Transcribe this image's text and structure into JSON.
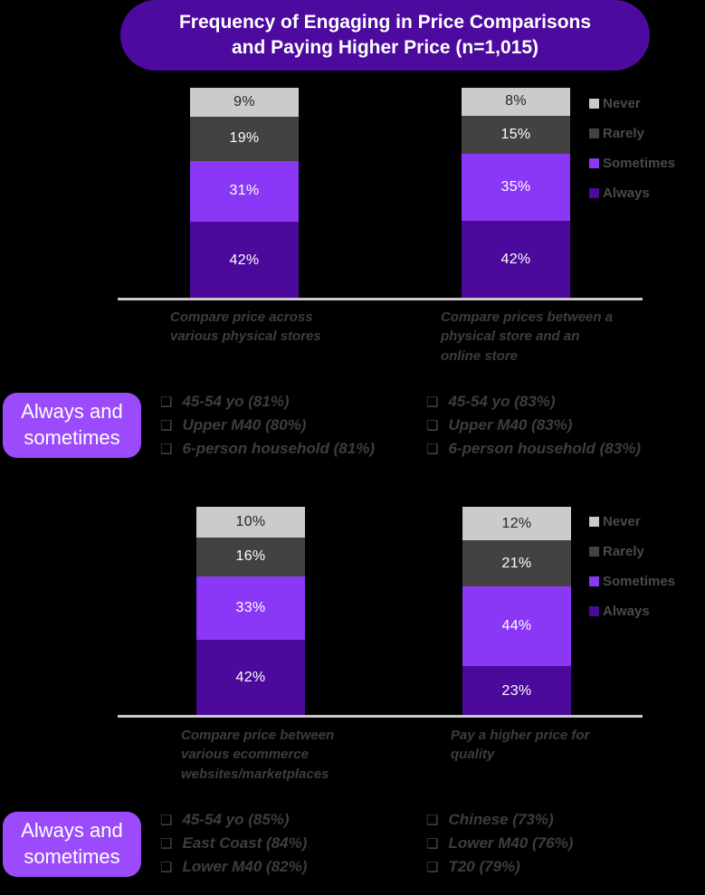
{
  "page": {
    "background": "#000000",
    "title_lines": [
      "Frequency of Engaging in Price Comparisons",
      "and Paying Higher Price (n=1,015)"
    ],
    "sample_size": "n=1,015"
  },
  "colors": {
    "title_bg": "#4c0a9e",
    "callout_bg": "#9b4bfb",
    "always": "#4b0a9b",
    "sometimes": "#8a38f6",
    "rarely": "#424242",
    "never": "#cbcbcb",
    "axis_line": "#c9c9c9",
    "label_text": "#3d3d3d"
  },
  "chart_data": [
    {
      "type": "bar",
      "stacked": true,
      "orientation": "vertical",
      "unit": "%",
      "ylim": [
        0,
        100
      ],
      "legend_position": "right",
      "legend_order_top_to_bottom": [
        "Never",
        "Rarely",
        "Sometimes",
        "Always"
      ],
      "title": "Frequency of Engaging in Price Comparisons and Paying Higher Price (n=1,015)",
      "categories": [
        "Compare price across various physical stores",
        "Compare prices between a physical store and an online store"
      ],
      "category_labels": [
        "Compare price across\nvarious physical stores",
        "Compare prices between a\nphysical store and an\nonline store"
      ],
      "series": [
        {
          "name": "Always",
          "values": [
            42,
            42
          ],
          "color": "#4b0a9b",
          "text_color": "#ffffff"
        },
        {
          "name": "Sometimes",
          "values": [
            31,
            35
          ],
          "color": "#8a38f6",
          "text_color": "#ffffff"
        },
        {
          "name": "Rarely",
          "values": [
            19,
            15
          ],
          "color": "#424242",
          "text_color": "#ffffff"
        },
        {
          "name": "Never",
          "values": [
            9,
            8
          ],
          "color": "#cbcbcb",
          "text_color": "#262626"
        }
      ]
    },
    {
      "type": "bar",
      "stacked": true,
      "orientation": "vertical",
      "unit": "%",
      "ylim": [
        0,
        100
      ],
      "legend_position": "right",
      "legend_order_top_to_bottom": [
        "Never",
        "Rarely",
        "Sometimes",
        "Always"
      ],
      "categories": [
        "Compare price between various ecommerce websites/marketplaces",
        "Pay a higher price for quality"
      ],
      "category_labels": [
        "Compare price between\nvarious ecommerce\nwebsites/marketplaces",
        "Pay a higher price for\nquality"
      ],
      "series": [
        {
          "name": "Always",
          "values": [
            42,
            23
          ],
          "color": "#4b0a9b",
          "text_color": "#ffffff"
        },
        {
          "name": "Sometimes",
          "values": [
            33,
            44
          ],
          "color": "#8a38f6",
          "text_color": "#ffffff"
        },
        {
          "name": "Rarely",
          "values": [
            16,
            21
          ],
          "color": "#424242",
          "text_color": "#ffffff"
        },
        {
          "name": "Never",
          "values": [
            10,
            12
          ],
          "color": "#cbcbcb",
          "text_color": "#262626"
        }
      ]
    }
  ],
  "callouts": [
    {
      "label": "Always and\nsometimes",
      "bullet": "❑",
      "columns": [
        [
          "45-54 yo (81%)",
          "Upper M40 (80%)",
          "6-person household (81%)"
        ],
        [
          "45-54 yo (83%)",
          "Upper M40 (83%)",
          "6-person household (83%)"
        ]
      ]
    },
    {
      "label": "Always and\nsometimes",
      "bullet": "❑",
      "columns": [
        [
          "45-54 yo (85%)",
          "East Coast (84%)",
          "Lower M40 (82%)"
        ],
        [
          "Chinese (73%)",
          "Lower M40 (76%)",
          "T20 (79%)"
        ]
      ]
    }
  ]
}
